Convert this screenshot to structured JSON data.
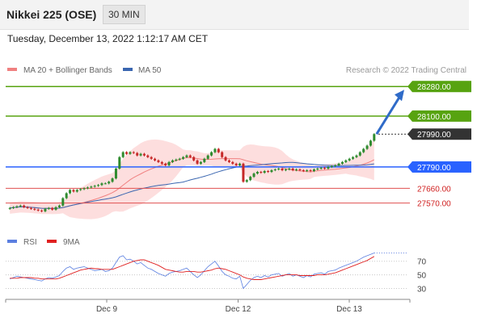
{
  "header": {
    "title": "Nikkei 225 (OSE)",
    "interval": "30 MIN"
  },
  "datetime": "Tuesday, December 13, 2022 1:12:17 AM CET",
  "legend": {
    "ma20": "MA 20 + Bollinger Bands",
    "ma50": "MA 50",
    "credit": "Research © 2022 Trading Central",
    "ma20_color": "#f08080",
    "ma50_color": "#3a66b0"
  },
  "rsi_legend": {
    "rsi": "RSI",
    "ma9": "9MA",
    "rsi_color": "#5b7fe0",
    "ma9_color": "#e02020"
  },
  "chart_data": [
    {
      "type": "candlestick",
      "title": "",
      "ylim": [
        27480,
        28340
      ],
      "levels": [
        {
          "value": 28280,
          "label": "28280.00",
          "color": "#57a310",
          "style": "solid"
        },
        {
          "value": 28100,
          "label": "28100.00",
          "color": "#57a310",
          "style": "solid"
        },
        {
          "value": 27990,
          "label": "27990.00",
          "color": "#333333",
          "style": "dotted"
        },
        {
          "value": 27790,
          "label": "27790.00",
          "color": "#2962ff",
          "style": "solid"
        },
        {
          "value": 27660,
          "label": "27660.00",
          "color": "#e05050",
          "style": "solid"
        },
        {
          "value": 27570,
          "label": "27570.00",
          "color": "#e05050",
          "style": "solid"
        }
      ],
      "arrow": {
        "from": 27990,
        "to": 28280,
        "color": "#2f6bc8"
      },
      "x_ticks": [
        "Dec 9",
        "Dec 12",
        "Dec 13"
      ],
      "x_tick_positions": [
        30,
        69,
        102
      ],
      "x_range": [
        0,
        120
      ],
      "close": [
        27540,
        27545,
        27550,
        27555,
        27545,
        27540,
        27535,
        27530,
        27525,
        27520,
        27535,
        27540,
        27530,
        27545,
        27555,
        27600,
        27630,
        27650,
        27640,
        27650,
        27655,
        27660,
        27665,
        27670,
        27675,
        27680,
        27690,
        27690,
        27700,
        27720,
        27780,
        27850,
        27880,
        27870,
        27880,
        27875,
        27860,
        27870,
        27860,
        27850,
        27840,
        27830,
        27820,
        27810,
        27800,
        27820,
        27830,
        27835,
        27840,
        27850,
        27860,
        27850,
        27830,
        27810,
        27820,
        27840,
        27860,
        27880,
        27900,
        27880,
        27850,
        27830,
        27820,
        27810,
        27800,
        27810,
        27700,
        27710,
        27730,
        27750,
        27760,
        27755,
        27765,
        27760,
        27770,
        27775,
        27780,
        27770,
        27775,
        27780,
        27770,
        27775,
        27770,
        27765,
        27770,
        27765,
        27775,
        27780,
        27785,
        27780,
        27790,
        27795,
        27800,
        27810,
        27820,
        27830,
        27840,
        27850,
        27860,
        27880,
        27900,
        27920,
        27950,
        27990
      ],
      "rsi": {
        "ylim": [
          20,
          85
        ],
        "ticks": [
          70,
          50,
          30
        ],
        "rsi": [
          44,
          46,
          48,
          47,
          46,
          45,
          44,
          43,
          42,
          41,
          44,
          46,
          45,
          47,
          49,
          55,
          60,
          62,
          58,
          60,
          61,
          62,
          60,
          58,
          56,
          57,
          58,
          55,
          56,
          60,
          68,
          76,
          78,
          72,
          73,
          70,
          66,
          68,
          64,
          60,
          58,
          55,
          52,
          50,
          48,
          52,
          54,
          55,
          56,
          58,
          60,
          55,
          50,
          46,
          50,
          56,
          62,
          66,
          70,
          63,
          55,
          50,
          48,
          45,
          44,
          48,
          30,
          36,
          42,
          46,
          48,
          46,
          49,
          47,
          50,
          51,
          52,
          48,
          50,
          52,
          48,
          50,
          48,
          46,
          49,
          47,
          51,
          52,
          53,
          51,
          55,
          56,
          57,
          60,
          62,
          64,
          66,
          68,
          70,
          73,
          76,
          78,
          80,
          82
        ],
        "ma9": [
          45,
          45,
          45,
          46,
          46,
          46,
          46,
          45,
          45,
          44,
          44,
          44,
          44,
          44,
          45,
          47,
          49,
          51,
          53,
          55,
          57,
          58,
          59,
          60,
          59,
          59,
          58,
          58,
          58,
          58,
          60,
          62,
          64,
          66,
          68,
          70,
          71,
          72,
          72,
          70,
          68,
          66,
          64,
          61,
          58,
          57,
          56,
          55,
          54,
          54,
          55,
          55,
          55,
          54,
          54,
          55,
          56,
          57,
          59,
          60,
          59,
          58,
          56,
          54,
          52,
          50,
          47,
          45,
          44,
          43,
          43,
          43,
          44,
          45,
          46,
          47,
          48,
          49,
          50,
          50,
          50,
          50,
          49,
          49,
          49,
          49,
          49,
          50,
          50,
          50,
          51,
          52,
          53,
          55,
          57,
          59,
          61,
          63,
          65,
          67,
          69,
          71,
          74,
          77
        ]
      }
    }
  ]
}
